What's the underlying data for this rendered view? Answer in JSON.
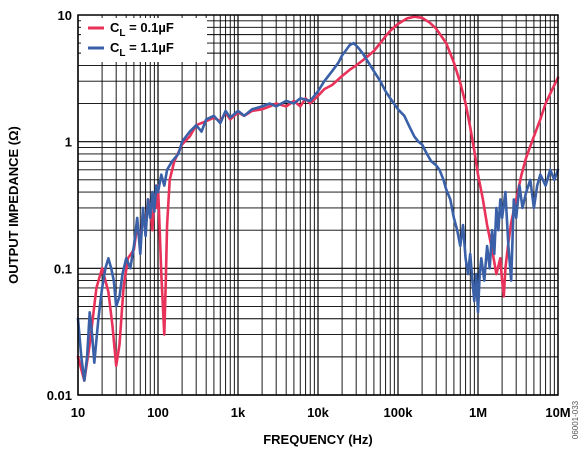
{
  "chart_data": {
    "type": "line",
    "title": "",
    "xlabel": "FREQUENCY (Hz)",
    "ylabel": "OUTPUT IMPEDANCE (Ω)",
    "xscale": "log",
    "yscale": "log",
    "xlim": [
      10,
      10000000
    ],
    "ylim": [
      0.01,
      10
    ],
    "grid": true,
    "legend_position": "top-left",
    "x_ticks": [
      {
        "value": 10,
        "label": "10"
      },
      {
        "value": 100,
        "label": "100"
      },
      {
        "value": 1000,
        "label": "1k"
      },
      {
        "value": 10000,
        "label": "10k"
      },
      {
        "value": 100000,
        "label": "100k"
      },
      {
        "value": 1000000,
        "label": "1M"
      },
      {
        "value": 10000000,
        "label": "10M"
      }
    ],
    "y_ticks": [
      {
        "value": 0.01,
        "label": "0.01"
      },
      {
        "value": 0.1,
        "label": "0.1"
      },
      {
        "value": 1,
        "label": "1"
      },
      {
        "value": 10,
        "label": "10"
      }
    ],
    "side_code": "06001-033",
    "series": [
      {
        "name": "C_L = 0.1µF",
        "legend_main": "C",
        "legend_sub": "L",
        "legend_rest": " = 0.1µF",
        "color": "#e8325a",
        "points": [
          [
            10,
            0.02
          ],
          [
            12,
            0.013
          ],
          [
            14,
            0.025
          ],
          [
            17,
            0.07
          ],
          [
            20,
            0.1
          ],
          [
            24,
            0.065
          ],
          [
            27,
            0.035
          ],
          [
            30,
            0.017
          ],
          [
            33,
            0.025
          ],
          [
            37,
            0.07
          ],
          [
            42,
            0.12
          ],
          [
            50,
            0.14
          ],
          [
            55,
            0.22
          ],
          [
            60,
            0.15
          ],
          [
            65,
            0.28
          ],
          [
            70,
            0.2
          ],
          [
            75,
            0.35
          ],
          [
            80,
            0.3
          ],
          [
            85,
            0.2
          ],
          [
            90,
            0.38
          ],
          [
            95,
            0.3
          ],
          [
            100,
            0.45
          ],
          [
            105,
            0.2
          ],
          [
            110,
            0.09
          ],
          [
            115,
            0.05
          ],
          [
            120,
            0.03
          ],
          [
            125,
            0.08
          ],
          [
            130,
            0.22
          ],
          [
            140,
            0.5
          ],
          [
            160,
            0.7
          ],
          [
            200,
            0.95
          ],
          [
            250,
            1.1
          ],
          [
            300,
            1.35
          ],
          [
            400,
            1.45
          ],
          [
            500,
            1.55
          ],
          [
            600,
            1.45
          ],
          [
            700,
            1.7
          ],
          [
            800,
            1.5
          ],
          [
            1000,
            1.7
          ],
          [
            1200,
            1.6
          ],
          [
            1500,
            1.75
          ],
          [
            2000,
            1.8
          ],
          [
            2500,
            1.9
          ],
          [
            3000,
            2.0
          ],
          [
            4000,
            1.9
          ],
          [
            5000,
            2.1
          ],
          [
            6000,
            1.9
          ],
          [
            7000,
            2.2
          ],
          [
            8000,
            2.0
          ],
          [
            10000,
            2.3
          ],
          [
            12000,
            2.6
          ],
          [
            15000,
            2.8
          ],
          [
            20000,
            3.3
          ],
          [
            25000,
            3.7
          ],
          [
            30000,
            4.0
          ],
          [
            40000,
            4.6
          ],
          [
            50000,
            5.2
          ],
          [
            60000,
            6.0
          ],
          [
            70000,
            6.8
          ],
          [
            80000,
            7.5
          ],
          [
            100000,
            8.5
          ],
          [
            130000,
            9.4
          ],
          [
            160000,
            9.7
          ],
          [
            200000,
            9.5
          ],
          [
            250000,
            8.7
          ],
          [
            300000,
            7.8
          ],
          [
            400000,
            6.0
          ],
          [
            500000,
            4.2
          ],
          [
            600000,
            2.9
          ],
          [
            700000,
            2.0
          ],
          [
            800000,
            1.3
          ],
          [
            900000,
            0.85
          ],
          [
            1000000,
            0.55
          ],
          [
            1150000,
            0.35
          ],
          [
            1300000,
            0.22
          ],
          [
            1500000,
            0.14
          ],
          [
            1700000,
            0.09
          ],
          [
            1900000,
            0.12
          ],
          [
            2000000,
            0.08
          ],
          [
            2100000,
            0.06
          ],
          [
            2200000,
            0.1
          ],
          [
            2400000,
            0.16
          ],
          [
            2600000,
            0.23
          ],
          [
            3000000,
            0.35
          ],
          [
            3500000,
            0.55
          ],
          [
            4000000,
            0.75
          ],
          [
            5000000,
            1.1
          ],
          [
            6000000,
            1.5
          ],
          [
            7000000,
            2.0
          ],
          [
            8500000,
            2.6
          ],
          [
            10000000,
            3.2
          ]
        ]
      },
      {
        "name": "C_L = 1.1µF",
        "legend_main": "C",
        "legend_sub": "L",
        "legend_rest": " = 1.1µF",
        "color": "#3a60a8",
        "points": [
          [
            10,
            0.04
          ],
          [
            11,
            0.02
          ],
          [
            12,
            0.013
          ],
          [
            13,
            0.02
          ],
          [
            14,
            0.045
          ],
          [
            15,
            0.03
          ],
          [
            16,
            0.018
          ],
          [
            18,
            0.04
          ],
          [
            20,
            0.07
          ],
          [
            22,
            0.1
          ],
          [
            24,
            0.12
          ],
          [
            26,
            0.1
          ],
          [
            28,
            0.08
          ],
          [
            30,
            0.05
          ],
          [
            33,
            0.06
          ],
          [
            36,
            0.09
          ],
          [
            40,
            0.12
          ],
          [
            45,
            0.1
          ],
          [
            50,
            0.15
          ],
          [
            55,
            0.25
          ],
          [
            60,
            0.13
          ],
          [
            65,
            0.3
          ],
          [
            70,
            0.18
          ],
          [
            75,
            0.35
          ],
          [
            80,
            0.25
          ],
          [
            85,
            0.4
          ],
          [
            90,
            0.28
          ],
          [
            95,
            0.45
          ],
          [
            100,
            0.4
          ],
          [
            110,
            0.55
          ],
          [
            120,
            0.45
          ],
          [
            130,
            0.6
          ],
          [
            150,
            0.7
          ],
          [
            180,
            0.8
          ],
          [
            200,
            1.0
          ],
          [
            250,
            1.2
          ],
          [
            300,
            1.35
          ],
          [
            350,
            1.2
          ],
          [
            400,
            1.5
          ],
          [
            500,
            1.6
          ],
          [
            600,
            1.4
          ],
          [
            700,
            1.75
          ],
          [
            800,
            1.55
          ],
          [
            1000,
            1.75
          ],
          [
            1200,
            1.6
          ],
          [
            1500,
            1.8
          ],
          [
            2000,
            1.9
          ],
          [
            2500,
            2.0
          ],
          [
            3000,
            1.9
          ],
          [
            4000,
            2.1
          ],
          [
            5000,
            2.0
          ],
          [
            6000,
            2.2
          ],
          [
            8000,
            2.1
          ],
          [
            10000,
            2.5
          ],
          [
            12000,
            3.0
          ],
          [
            15000,
            3.6
          ],
          [
            18000,
            4.2
          ],
          [
            20000,
            4.8
          ],
          [
            22000,
            5.2
          ],
          [
            25000,
            5.8
          ],
          [
            28000,
            6.0
          ],
          [
            32000,
            5.5
          ],
          [
            36000,
            5.0
          ],
          [
            40000,
            4.5
          ],
          [
            45000,
            4.0
          ],
          [
            50000,
            3.6
          ],
          [
            60000,
            3.0
          ],
          [
            70000,
            2.5
          ],
          [
            80000,
            2.2
          ],
          [
            100000,
            1.8
          ],
          [
            120000,
            1.6
          ],
          [
            140000,
            1.3
          ],
          [
            160000,
            1.1
          ],
          [
            180000,
            1.0
          ],
          [
            200000,
            0.95
          ],
          [
            230000,
            0.8
          ],
          [
            260000,
            0.7
          ],
          [
            300000,
            0.65
          ],
          [
            330000,
            0.6
          ],
          [
            370000,
            0.5
          ],
          [
            400000,
            0.42
          ],
          [
            450000,
            0.35
          ],
          [
            500000,
            0.25
          ],
          [
            550000,
            0.2
          ],
          [
            600000,
            0.15
          ],
          [
            650000,
            0.22
          ],
          [
            700000,
            0.12
          ],
          [
            750000,
            0.09
          ],
          [
            800000,
            0.13
          ],
          [
            850000,
            0.08
          ],
          [
            900000,
            0.055
          ],
          [
            950000,
            0.09
          ],
          [
            1000000,
            0.045
          ],
          [
            1050000,
            0.09
          ],
          [
            1100000,
            0.12
          ],
          [
            1200000,
            0.08
          ],
          [
            1300000,
            0.15
          ],
          [
            1400000,
            0.1
          ],
          [
            1500000,
            0.2
          ],
          [
            1600000,
            0.13
          ],
          [
            1700000,
            0.3
          ],
          [
            1800000,
            0.2
          ],
          [
            1900000,
            0.35
          ],
          [
            2000000,
            0.25
          ],
          [
            2200000,
            0.4
          ],
          [
            2400000,
            0.15
          ],
          [
            2600000,
            0.08
          ],
          [
            2800000,
            0.35
          ],
          [
            3000000,
            0.25
          ],
          [
            3300000,
            0.45
          ],
          [
            3600000,
            0.3
          ],
          [
            4000000,
            0.4
          ],
          [
            4500000,
            0.5
          ],
          [
            5000000,
            0.3
          ],
          [
            5500000,
            0.45
          ],
          [
            6000000,
            0.55
          ],
          [
            7000000,
            0.45
          ],
          [
            8000000,
            0.6
          ],
          [
            9000000,
            0.5
          ],
          [
            10000000,
            0.6
          ]
        ]
      }
    ]
  }
}
